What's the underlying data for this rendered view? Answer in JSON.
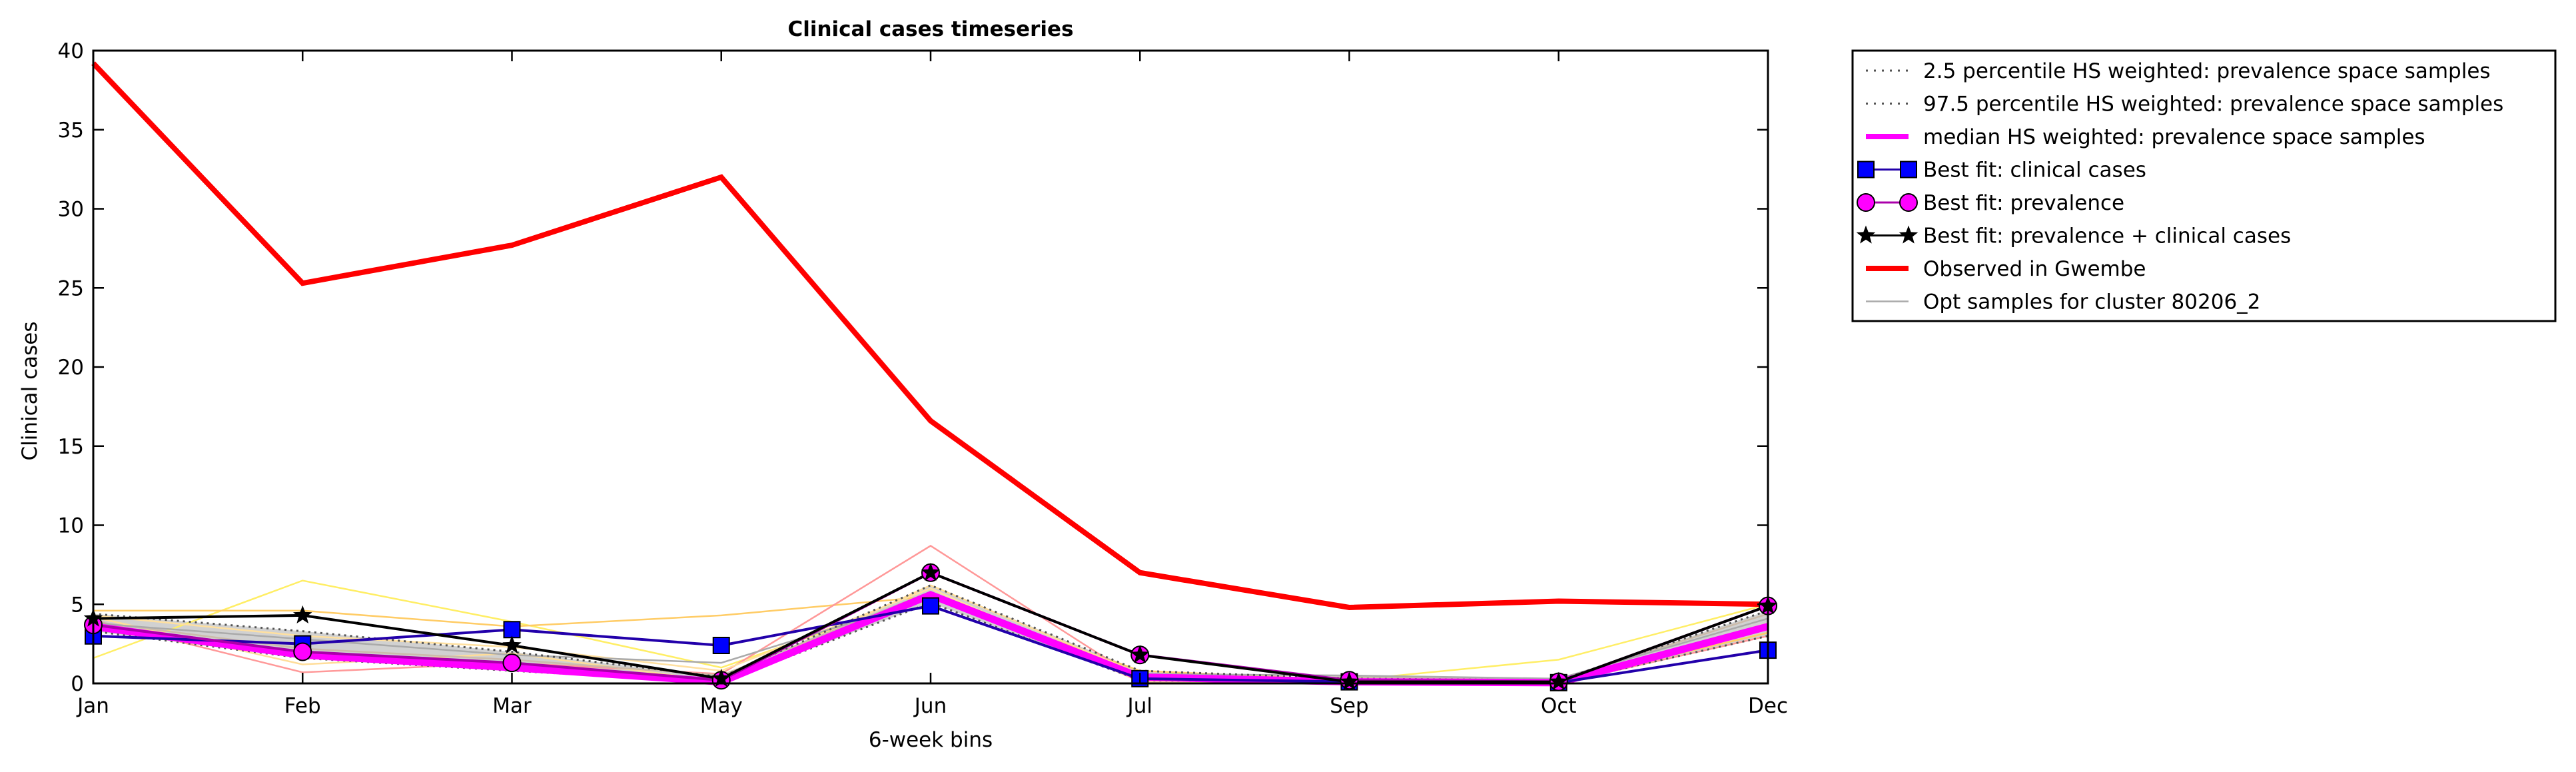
{
  "chart_data": {
    "type": "line",
    "title": "Clinical cases timeseries",
    "xlabel": "6-week bins",
    "ylabel": "Clinical cases",
    "categories": [
      "Jan",
      "Feb",
      "Mar",
      "May",
      "Jun",
      "Jul",
      "Sep",
      "Oct",
      "Dec"
    ],
    "ylim": [
      0,
      40
    ],
    "yticks": [
      0,
      5,
      10,
      15,
      20,
      25,
      30,
      35,
      40
    ],
    "grid": false,
    "legend_position": "outside-right-top",
    "series": [
      {
        "name": "2.5 percentile HS weighted: prevalence space samples",
        "style": "dotted",
        "color": "#555555",
        "values": [
          3.3,
          1.6,
          0.8,
          0.05,
          5.1,
          0.2,
          0.05,
          0.02,
          3.0
        ]
      },
      {
        "name": "97.5 percentile HS weighted: prevalence space samples",
        "style": "dotted",
        "color": "#555555",
        "values": [
          4.4,
          3.3,
          2.0,
          0.4,
          6.2,
          0.8,
          0.3,
          0.2,
          4.6
        ]
      },
      {
        "name": "median HS weighted: prevalence space samples",
        "style": "thick",
        "color": "#ff00ff",
        "values": [
          3.6,
          1.8,
          1.0,
          0.1,
          5.6,
          0.4,
          0.1,
          0.05,
          3.6
        ]
      },
      {
        "name": "Best fit: clinical cases",
        "style": "square-marker",
        "color": "#0000ff",
        "line_color": "#2200aa",
        "values": [
          3.0,
          2.5,
          3.4,
          2.4,
          4.9,
          0.3,
          0.1,
          0.05,
          2.1
        ]
      },
      {
        "name": "Best fit: prevalence",
        "style": "circle-marker",
        "color": "#ff00ff",
        "line_color": "#aa00aa",
        "values": [
          3.7,
          2.0,
          1.3,
          0.2,
          7.0,
          1.8,
          0.2,
          0.1,
          4.9
        ]
      },
      {
        "name": "Best fit: prevalence + clinical cases",
        "style": "star-marker",
        "color": "#000000",
        "values": [
          4.1,
          4.3,
          2.4,
          0.3,
          7.0,
          1.8,
          0.1,
          0.1,
          4.9
        ]
      },
      {
        "name": "Observed in Gwembe",
        "style": "thick",
        "color": "#ff0000",
        "values": [
          39.2,
          25.3,
          27.7,
          32.0,
          16.6,
          7.0,
          4.8,
          5.2,
          5.0
        ]
      },
      {
        "name": "Opt samples for cluster 80206_2",
        "style": "thin",
        "color": "#aaaaaa",
        "values": [
          3.8,
          2.8,
          1.8,
          1.3,
          5.4,
          0.6,
          0.5,
          0.3,
          4.1
        ]
      }
    ],
    "extra_sample_lines": [
      {
        "color": "#ffee66",
        "values": [
          1.6,
          6.5,
          3.9,
          1.0,
          5.6,
          0.5,
          0.2,
          1.5,
          5.0
        ]
      },
      {
        "color": "#ffcc66",
        "values": [
          4.6,
          4.6,
          3.6,
          4.3,
          5.5,
          0.8,
          0.2,
          0.1,
          3.2
        ]
      },
      {
        "color": "#ff9999",
        "values": [
          4.0,
          0.7,
          1.3,
          0.6,
          8.7,
          0.2,
          0.0,
          0.0,
          3.0
        ]
      },
      {
        "color": "#ffdd99",
        "values": [
          4.2,
          1.2,
          1.9,
          0.1,
          6.2,
          0.6,
          0.1,
          0.0,
          3.8
        ]
      },
      {
        "color": "#ccbbaa",
        "values": [
          3.9,
          2.2,
          1.5,
          0.5,
          5.8,
          0.3,
          0.4,
          0.2,
          4.4
        ]
      },
      {
        "color": "#ffe0a0",
        "values": [
          4.3,
          3.0,
          2.3,
          0.8,
          6.0,
          0.1,
          0.0,
          0.0,
          3.4
        ]
      }
    ]
  }
}
